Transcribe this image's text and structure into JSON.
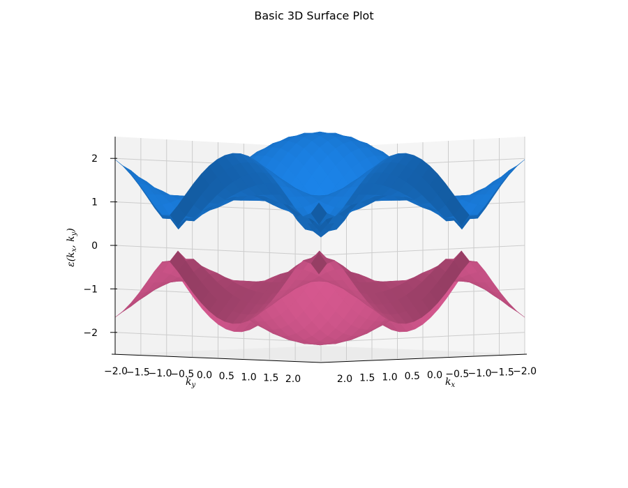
{
  "chart_data": {
    "type": "surface",
    "title": "Basic 3D Surface Plot",
    "xlabel": {
      "main": "k",
      "sub": "x"
    },
    "ylabel": {
      "main": "k",
      "sub": "y"
    },
    "zlabel": {
      "pre": "ε(k",
      "sub1": "x",
      "mid": ", k",
      "sub2": "y",
      "post": ")"
    },
    "xlim": [
      -2.0,
      2.0
    ],
    "ylim": [
      -2.0,
      2.0
    ],
    "zlim": [
      -2.5,
      2.5
    ],
    "x_ticks": [
      "2.0",
      "1.5",
      "1.0",
      "0.5",
      "0.0",
      "−0.5",
      "−1.0",
      "−1.5",
      "−2.0"
    ],
    "y_ticks": [
      "−2.0",
      "−1.5",
      "−1.0",
      "−0.5",
      "0.0",
      "0.5",
      "1.0",
      "1.5",
      "2.0"
    ],
    "z_ticks": [
      "2",
      "1",
      "0",
      "−1",
      "−2"
    ],
    "grid": true,
    "series": [
      {
        "band": "upper",
        "formula": "+sqrt(3 + 2cos(kx) + 2cos(ky) + 2cos(kx+ky))",
        "color": "#1e90ff"
      },
      {
        "band": "lower",
        "formula": "-sqrt(3 + 2cos(kx) + 2cos(ky) + 2cos(kx+ky))",
        "color": "#ea609c"
      }
    ]
  }
}
